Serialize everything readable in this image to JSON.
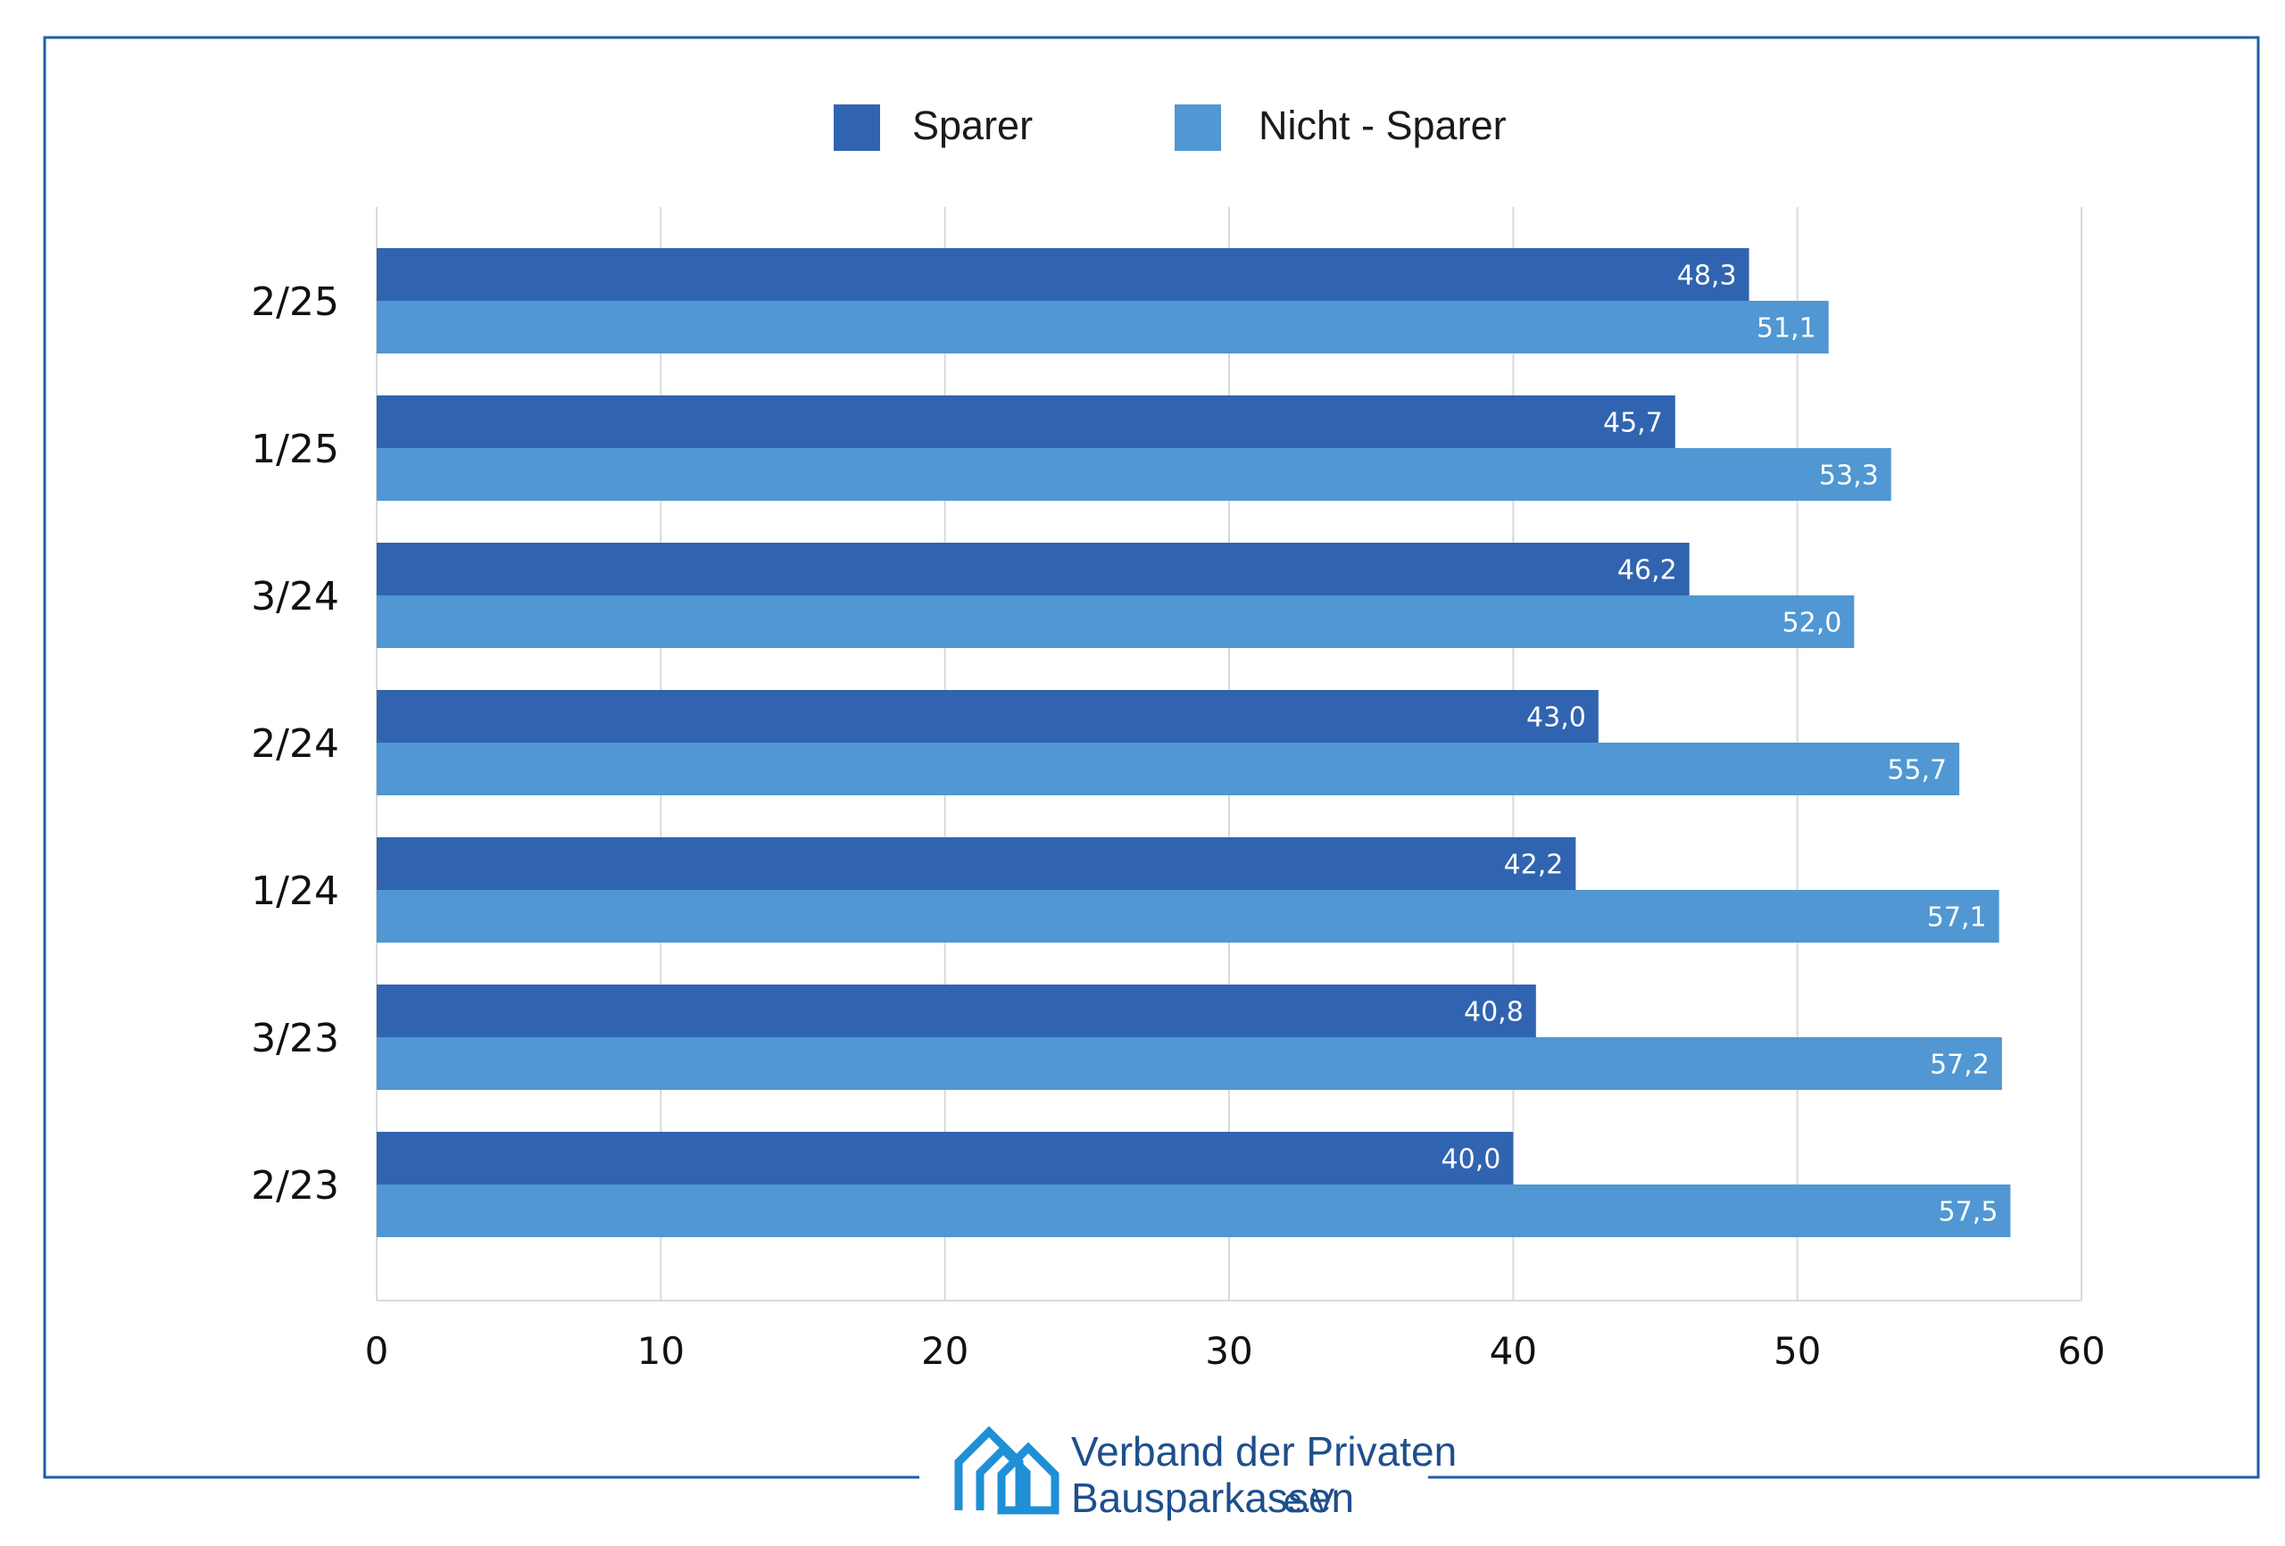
{
  "legend": {
    "items": [
      {
        "label": "Sparer",
        "color": "#3164b0"
      },
      {
        "label": "Nicht - Sparer",
        "color": "#5097d3"
      }
    ]
  },
  "chart_data": {
    "type": "bar",
    "orientation": "horizontal",
    "categories": [
      "2/25",
      "1/25",
      "3/24",
      "2/24",
      "1/24",
      "3/23",
      "2/23"
    ],
    "series": [
      {
        "name": "Sparer",
        "color": "#3164b0",
        "values": [
          48.3,
          45.7,
          46.2,
          43.0,
          42.2,
          40.8,
          40.0
        ],
        "labels": [
          "48,3",
          "45,7",
          "46,2",
          "43,0",
          "42,2",
          "40,8",
          "40,0"
        ]
      },
      {
        "name": "Nicht - Sparer",
        "color": "#5097d3",
        "values": [
          51.1,
          53.3,
          52.0,
          55.7,
          57.1,
          57.2,
          57.5
        ],
        "labels": [
          "51,1",
          "53,3",
          "52,0",
          "55,7",
          "57,1",
          "57,2",
          "57,5"
        ]
      }
    ],
    "xlim": [
      0,
      60
    ],
    "xticks": [
      "0",
      "10",
      "20",
      "30",
      "40",
      "50",
      "60"
    ],
    "grid": true,
    "legend_position": "top"
  },
  "footer": {
    "logo_line1": "Verband der Privaten",
    "logo_line2": "Bausparkassen",
    "logo_suffix": "e.V.",
    "frame_color": "#1f5fa6"
  }
}
